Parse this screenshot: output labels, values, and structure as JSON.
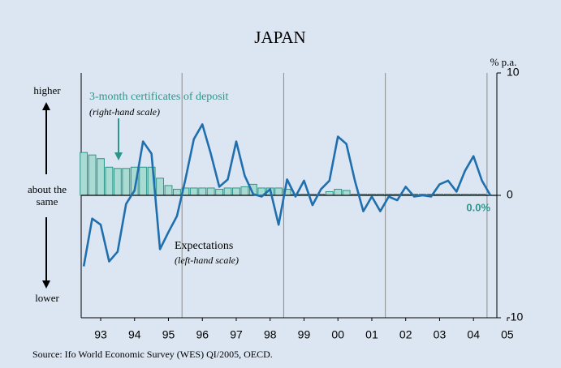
{
  "chart_data": {
    "type": "line_bar",
    "title": "JAPAN",
    "y2_unit": "% p.a.",
    "source": "Source: Ifo World Economic Survey (WES) QI/2005, OECD.",
    "left_labels": [
      "higher",
      "about the same",
      "lower"
    ],
    "annotations": [
      {
        "text": "3-month certificates of deposit",
        "note": "(right-hand scale)"
      },
      {
        "text": "Expectations",
        "note": "(left-hand scale)"
      }
    ],
    "x": [
      1993,
      1993.25,
      1993.5,
      1993.75,
      1994,
      1994.25,
      1994.5,
      1994.75,
      1995,
      1995.25,
      1995.5,
      1995.75,
      1996,
      1996.25,
      1996.5,
      1996.75,
      1997,
      1997.25,
      1997.5,
      1997.75,
      1998,
      1998.25,
      1998.5,
      1998.75,
      1999,
      1999.25,
      1999.5,
      1999.75,
      2000,
      2000.25,
      2000.5,
      2000.75,
      2001,
      2001.25,
      2001.5,
      2001.75,
      2002,
      2002.25,
      2002.5,
      2002.75,
      2003,
      2003.25,
      2003.5,
      2003.75,
      2004,
      2004.25,
      2004.5,
      2004.75,
      2005
    ],
    "xlim": [
      1992.925,
      2005.19
    ],
    "xticks": [
      {
        "value": 1993.5,
        "label": "93"
      },
      {
        "value": 1994.5,
        "label": "94"
      },
      {
        "value": 1995.5,
        "label": "95"
      },
      {
        "value": 1996.5,
        "label": "96"
      },
      {
        "value": 1997.5,
        "label": "97"
      },
      {
        "value": 1998.5,
        "label": "98"
      },
      {
        "value": 1999.5,
        "label": "99"
      },
      {
        "value": 2000.5,
        "label": "00"
      },
      {
        "value": 2001.5,
        "label": "01"
      },
      {
        "value": 2002.5,
        "label": "02"
      },
      {
        "value": 2003.5,
        "label": "03"
      },
      {
        "value": 2004.5,
        "label": "04"
      },
      {
        "value": 2005.5,
        "label": "05"
      }
    ],
    "xgrid": [
      1995.9,
      1998.9,
      2001.9,
      2004.9
    ],
    "ylim": [
      -10,
      10
    ],
    "y2lim": [
      -10,
      10
    ],
    "y2ticks": [
      10,
      0,
      -10
    ],
    "series": [
      {
        "name": "3-month certificates of deposit",
        "kind": "bar",
        "axis": "y2",
        "color": "#a9dbd3",
        "edge": "#2f958a",
        "values": [
          3.5,
          3.3,
          3.0,
          2.3,
          2.2,
          2.2,
          2.3,
          2.3,
          2.3,
          1.4,
          0.8,
          0.5,
          0.6,
          0.6,
          0.6,
          0.6,
          0.5,
          0.6,
          0.6,
          0.7,
          0.9,
          0.6,
          0.6,
          0.6,
          0.5,
          0.1,
          0.1,
          0.1,
          0.1,
          0.3,
          0.5,
          0.4,
          0.1,
          0.1,
          0.1,
          0.1,
          0.1,
          0.1,
          0.1,
          0.1,
          0.1,
          0.1,
          0.1,
          0.1,
          0.1,
          0.1,
          0.1,
          0.1,
          0.0
        ],
        "value_labels": [
          null,
          null,
          null,
          null,
          null,
          null,
          null,
          null,
          null,
          null,
          null,
          null,
          null,
          null,
          null,
          null,
          null,
          null,
          null,
          null,
          null,
          null,
          null,
          null,
          null,
          null,
          null,
          null,
          null,
          null,
          null,
          null,
          null,
          null,
          null,
          null,
          null,
          null,
          null,
          null,
          null,
          null,
          null,
          null,
          null,
          null,
          null,
          null,
          "0.0%"
        ]
      },
      {
        "name": "Expectations",
        "kind": "line",
        "color": "#1f6fae",
        "values": [
          -5.8,
          -1.9,
          -2.4,
          -5.4,
          -4.6,
          -0.7,
          0.4,
          4.4,
          3.4,
          -4.4,
          -3.0,
          -1.7,
          1.3,
          4.6,
          5.8,
          3.4,
          0.7,
          1.3,
          4.4,
          1.6,
          0.1,
          -0.1,
          0.5,
          -2.4,
          1.3,
          -0.1,
          1.2,
          -0.8,
          0.5,
          1.2,
          4.8,
          4.2,
          1.2,
          -1.3,
          -0.1,
          -1.3,
          -0.1,
          -0.4,
          0.7,
          -0.1,
          0.0,
          -0.1,
          0.9,
          1.2,
          0.3,
          2.0,
          3.2,
          1.2,
          0.0
        ]
      }
    ]
  }
}
